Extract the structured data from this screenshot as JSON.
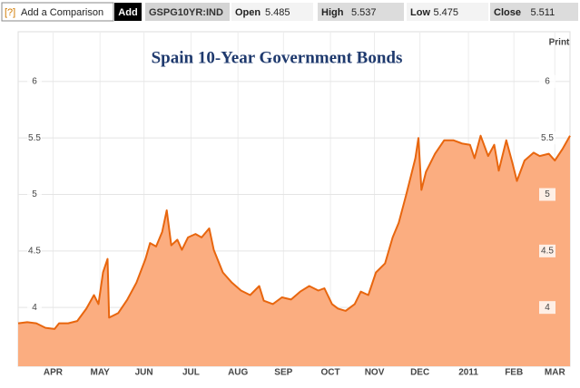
{
  "toolbar": {
    "help": "[?]",
    "comparison": "Add a Comparison",
    "add": "Add",
    "ticker": "GSPG10YR:IND",
    "stats": [
      {
        "label": "Open",
        "value": "5.485"
      },
      {
        "label": "High",
        "value": "5.537"
      },
      {
        "label": "Low",
        "value": "5.475"
      },
      {
        "label": "Close",
        "value": "5.511"
      }
    ],
    "print": "Print"
  },
  "chart_data": {
    "type": "area",
    "title": "Spain 10-Year Government Bonds",
    "series": [
      {
        "name": "GSPG10YR:IND",
        "color": "#e8660e",
        "fill": "#fbad80",
        "x": [
          0,
          6,
          12,
          18,
          24,
          27,
          33,
          39,
          45,
          50,
          53,
          56,
          59,
          60,
          66,
          72,
          78,
          84,
          87,
          91,
          95,
          98,
          101,
          105,
          108,
          112,
          117,
          121,
          126,
          129,
          135,
          141,
          147,
          153,
          159,
          162,
          168,
          174,
          180,
          186,
          192,
          198,
          202,
          207,
          211,
          216,
          222,
          226,
          231,
          236,
          242,
          247,
          251,
          256,
          259,
          262,
          264,
          266,
          269,
          275,
          281,
          287,
          293,
          298,
          301,
          305,
          310,
          314,
          317,
          322,
          326,
          329,
          334,
          340,
          344,
          350,
          354,
          359,
          364
        ],
        "values": [
          3.86,
          3.87,
          3.86,
          3.82,
          3.81,
          3.86,
          3.86,
          3.88,
          3.99,
          4.11,
          4.03,
          4.31,
          4.43,
          3.91,
          3.95,
          4.07,
          4.22,
          4.43,
          4.57,
          4.54,
          4.67,
          4.86,
          4.55,
          4.6,
          4.51,
          4.62,
          4.65,
          4.62,
          4.7,
          4.51,
          4.31,
          4.22,
          4.15,
          4.11,
          4.19,
          4.06,
          4.03,
          4.09,
          4.07,
          4.14,
          4.19,
          4.15,
          4.17,
          4.03,
          3.99,
          3.97,
          4.03,
          4.14,
          4.11,
          4.31,
          4.39,
          4.62,
          4.75,
          5.0,
          5.16,
          5.32,
          5.5,
          5.04,
          5.2,
          5.36,
          5.48,
          5.48,
          5.45,
          5.44,
          5.32,
          5.52,
          5.34,
          5.44,
          5.21,
          5.48,
          5.28,
          5.12,
          5.3,
          5.37,
          5.34,
          5.36,
          5.3,
          5.4,
          5.52
        ]
      }
    ],
    "xlim": [
      0,
      364
    ],
    "xticks": [
      {
        "value": 23,
        "label": "APR"
      },
      {
        "value": 54,
        "label": "MAY"
      },
      {
        "value": 83,
        "label": "JUN"
      },
      {
        "value": 114,
        "label": "JUL"
      },
      {
        "value": 145,
        "label": "AUG"
      },
      {
        "value": 175,
        "label": "SEP"
      },
      {
        "value": 206,
        "label": "OCT"
      },
      {
        "value": 235,
        "label": "NOV"
      },
      {
        "value": 265,
        "label": "DEC"
      },
      {
        "value": 297,
        "label": "2011"
      },
      {
        "value": 327,
        "label": "FEB"
      },
      {
        "value": 354,
        "label": "MAR"
      }
    ],
    "ylim": [
      3.48,
      6.44
    ],
    "yticks": [
      4,
      4.5,
      5,
      5.5,
      6
    ],
    "grid": true
  }
}
